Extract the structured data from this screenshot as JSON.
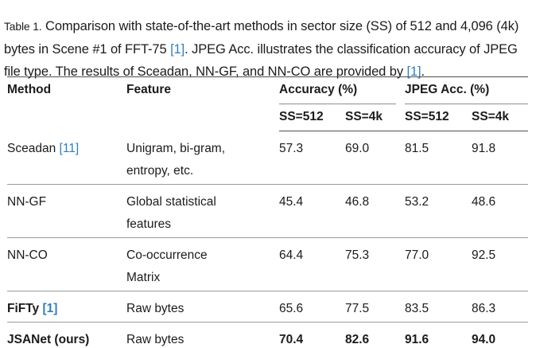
{
  "caption": {
    "parts": [
      {
        "text": "Table 1."
      },
      {
        "text": " Comparison with state-of-the-art methods in sector size (SS) of 512 and 4,096 (4k) bytes in Scene #1 of FFT-75 "
      },
      {
        "text": "[1]"
      },
      {
        "text": ". JPEG Acc. illustrates the classification accuracy of JPEG file type. The results of Sceadan, NN-GF, and NN-CO are provided by "
      },
      {
        "text": "[1]"
      },
      {
        "text": "."
      }
    ]
  },
  "table": {
    "columns": {
      "method": "Method",
      "feature": "Feature",
      "group_accuracy": "Accuracy (%)",
      "group_jpeg": "JPEG Acc. (%)",
      "sub": [
        "SS=512",
        "SS=4k",
        "SS=512",
        "SS=4k"
      ]
    },
    "rows": [
      {
        "method": "Sceadan",
        "ref": "[11]",
        "feature": "Unigram, bi-gram, entropy, etc.",
        "values": [
          "57.3",
          "69.0",
          "81.5",
          "91.8"
        ]
      },
      {
        "method": "NN-GF",
        "ref": "",
        "feature": "Global statistical features",
        "values": [
          "45.4",
          "46.8",
          "53.2",
          "48.6"
        ]
      },
      {
        "method": "NN-CO",
        "ref": "",
        "feature": "Co-occurrence Matrix",
        "values": [
          "64.4",
          "75.3",
          "77.0",
          "92.5"
        ]
      },
      {
        "method": "FiFTy",
        "ref": "[1]",
        "feature": "Raw bytes",
        "values": [
          "65.6",
          "77.5",
          "83.5",
          "86.3"
        ]
      },
      {
        "method": "JSANet (ours)",
        "ref": "",
        "feature": "Raw bytes",
        "values": [
          "70.4",
          "82.6",
          "91.6",
          "94.0"
        ]
      }
    ]
  },
  "colors": {
    "link_blue": "#2e7fc0",
    "text": "#1b1b1b",
    "rule_heavy": "#4e4e4e",
    "rule_light": "#9a9a9a"
  }
}
